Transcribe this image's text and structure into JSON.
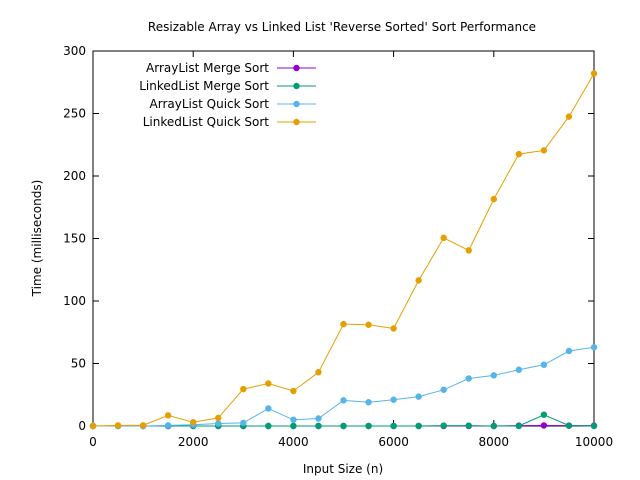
{
  "chart_data": {
    "type": "line",
    "title": "Resizable Array vs Linked List 'Reverse Sorted' Sort Performance",
    "xlabel": "Input Size (n)",
    "ylabel": "Time (milliseconds)",
    "xlim": [
      0,
      10000
    ],
    "ylim": [
      0,
      300
    ],
    "x_ticks": [
      "0",
      "2000",
      "4000",
      "6000",
      "8000",
      "10000"
    ],
    "y_ticks": [
      "0",
      "50",
      "100",
      "150",
      "200",
      "250",
      "300"
    ],
    "grid": false,
    "legend_position": "top-left",
    "x": [
      0,
      500,
      1000,
      1500,
      2000,
      2500,
      3000,
      3500,
      4000,
      4500,
      5000,
      5500,
      6000,
      6500,
      7000,
      7500,
      8000,
      8500,
      9000,
      9500,
      10000
    ],
    "series": [
      {
        "name": "ArrayList Merge Sort",
        "color": "#9400d3",
        "values": [
          0,
          0,
          0,
          0,
          0,
          0,
          0,
          0,
          0,
          0,
          0,
          0,
          0,
          0,
          0,
          0,
          0,
          0.3,
          0.4,
          0.3,
          0.3
        ]
      },
      {
        "name": "LinkedList Merge Sort",
        "color": "#009e73",
        "values": [
          0,
          0,
          0,
          0,
          0,
          0,
          0,
          0,
          0,
          0,
          0,
          0,
          0,
          0,
          0.3,
          0.3,
          0,
          0,
          9,
          0.3,
          0
        ]
      },
      {
        "name": "ArrayList Quick Sort",
        "color": "#56b4e9",
        "values": [
          0,
          0,
          0,
          0.5,
          1,
          2,
          2.5,
          14,
          5,
          6,
          20.5,
          19,
          21,
          23.5,
          29,
          38,
          40.5,
          45,
          49,
          60,
          63
        ]
      },
      {
        "name": "LinkedList Quick Sort",
        "color": "#e69f00",
        "values": [
          0,
          0.5,
          0.5,
          8.5,
          3,
          6.5,
          29.5,
          34,
          28,
          43,
          81.5,
          81,
          78,
          116.5,
          150.5,
          140.5,
          181.5,
          217.5,
          220.5,
          247.5,
          282
        ]
      }
    ]
  }
}
